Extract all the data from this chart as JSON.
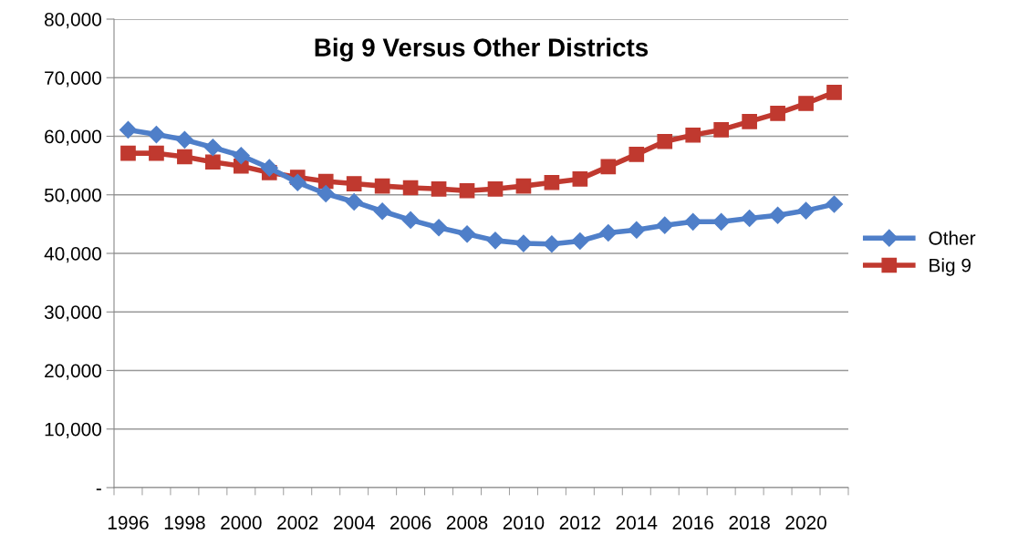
{
  "chart_data": {
    "type": "line",
    "title": "Big 9 Versus Other Districts",
    "categories": [
      "1996",
      null,
      "1998",
      null,
      "2000",
      null,
      "2002",
      null,
      "2004",
      null,
      "2006",
      null,
      "2008",
      null,
      "2010",
      null,
      "2012",
      null,
      "2014",
      null,
      "2016",
      null,
      "2018",
      null,
      "2020",
      null
    ],
    "series": [
      {
        "name": "Other",
        "color": "#4f7fc9",
        "marker": "diamond",
        "values": [
          61100,
          60300,
          59400,
          58100,
          56700,
          54600,
          52100,
          50200,
          48800,
          47200,
          45700,
          44400,
          43300,
          42200,
          41700,
          41600,
          42100,
          43500,
          44000,
          44800,
          45400,
          45400,
          46000,
          46500,
          47300,
          48400
        ]
      },
      {
        "name": "Big 9",
        "color": "#c0392f",
        "marker": "square",
        "values": [
          57100,
          57100,
          56500,
          55600,
          54900,
          53800,
          53000,
          52300,
          51900,
          51500,
          51200,
          51000,
          50700,
          51000,
          51500,
          52100,
          52700,
          54800,
          56900,
          59100,
          60200,
          61100,
          62500,
          63900,
          65600,
          67500
        ]
      }
    ],
    "ylim": [
      0,
      80000
    ],
    "yticks": [
      {
        "value": 0,
        "label": "-"
      },
      {
        "value": 10000,
        "label": "10,000"
      },
      {
        "value": 20000,
        "label": "20,000"
      },
      {
        "value": 30000,
        "label": "30,000"
      },
      {
        "value": 40000,
        "label": "40,000"
      },
      {
        "value": 50000,
        "label": "50,000"
      },
      {
        "value": 60000,
        "label": "60,000"
      },
      {
        "value": 70000,
        "label": "70,000"
      },
      {
        "value": 80000,
        "label": "80,000"
      }
    ],
    "grid": "y",
    "legend": "right",
    "line_style": "solid"
  }
}
